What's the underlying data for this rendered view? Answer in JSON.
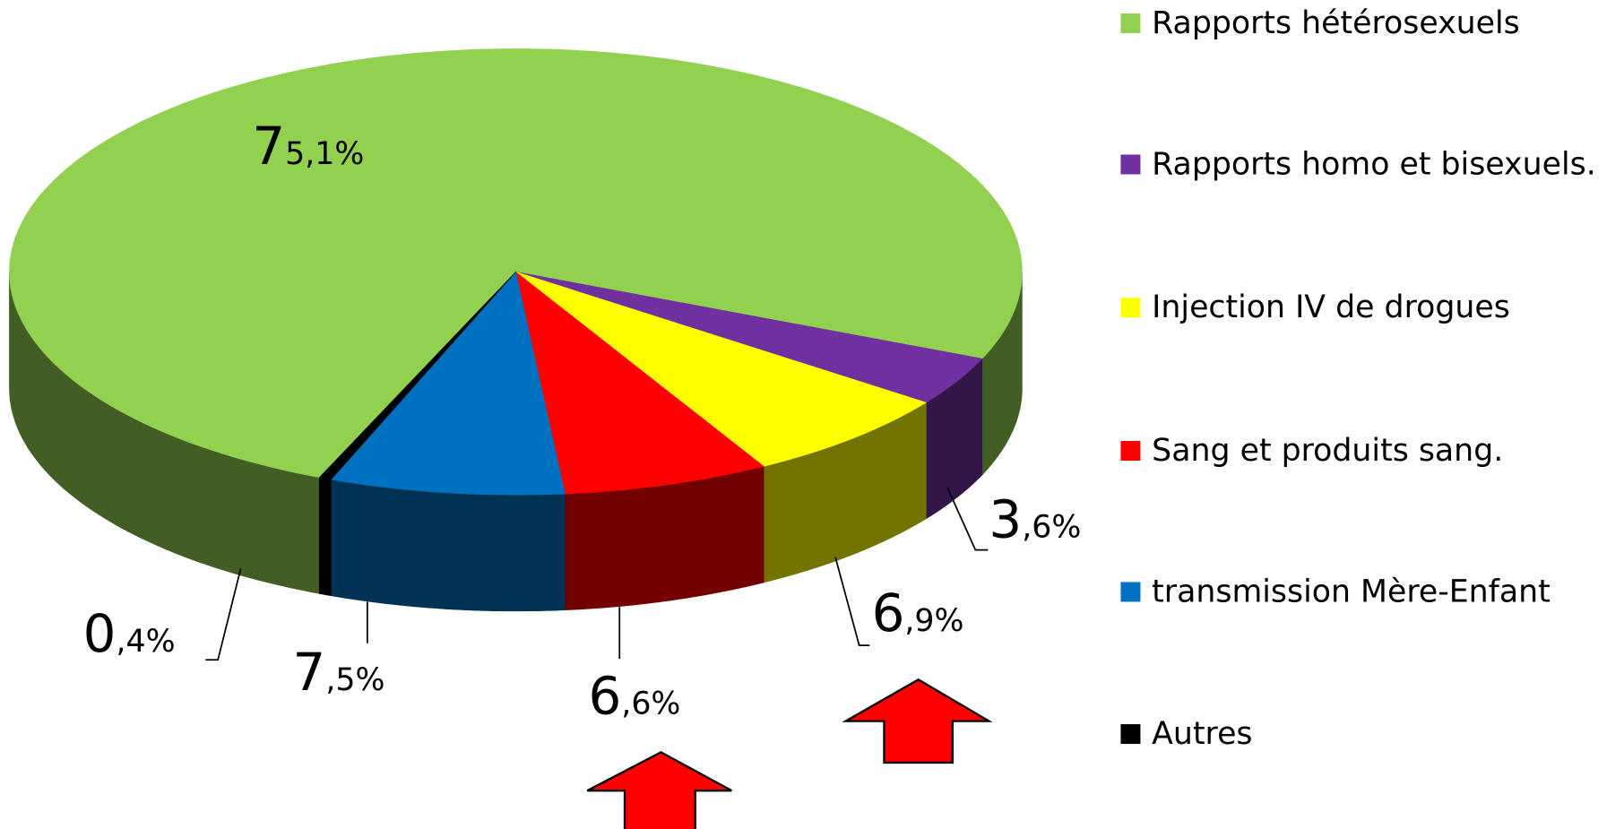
{
  "chart_data": {
    "type": "pie",
    "categories": [
      "Rapports hétérosexuels",
      "Rapports homo et bisexuels.",
      "Injection IV de drogues",
      "Sang et produits sang.",
      "transmission Mère-Enfant",
      "Autres"
    ],
    "values": [
      75.1,
      3.6,
      6.9,
      6.6,
      7.5,
      0.4
    ],
    "value_labels": [
      "75,1%",
      "3,6%",
      "6,9%",
      "6,6%",
      "7,5%",
      "0,4%"
    ],
    "colors": [
      "#92d050",
      "#7030a0",
      "#ffff00",
      "#ff0000",
      "#0070c0",
      "#000000"
    ],
    "legend": "right"
  }
}
